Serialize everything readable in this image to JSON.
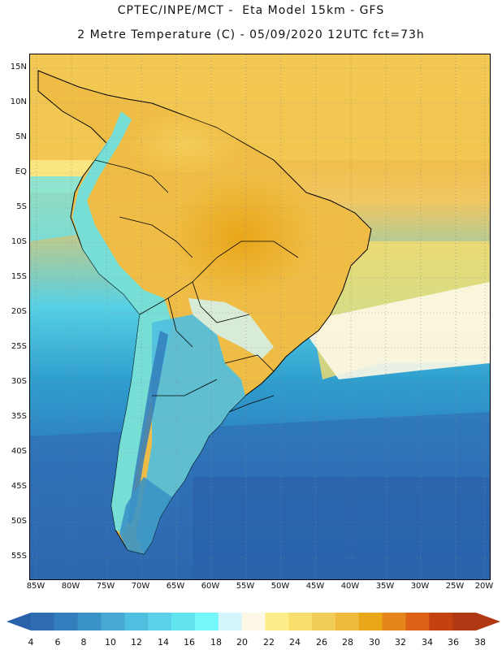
{
  "header": {
    "line1": "CPTEC/INPE/MCT -  Eta Model 15km - GFS",
    "line2": "2 Metre Temperature (C) - 05/09/2020 12UTC fct=73h"
  },
  "map": {
    "variable": "2 Metre Temperature",
    "units": "C",
    "lat_labels": [
      "15N",
      "10N",
      "5N",
      "EQ",
      "5S",
      "10S",
      "15S",
      "20S",
      "25S",
      "30S",
      "35S",
      "40S",
      "45S",
      "50S",
      "55S"
    ],
    "lon_labels": [
      "85W",
      "80W",
      "75W",
      "70W",
      "65W",
      "60W",
      "55W",
      "50W",
      "45W",
      "40W",
      "35W",
      "30W",
      "25W",
      "20W"
    ]
  },
  "colorbar": {
    "labels": [
      "4",
      "6",
      "8",
      "10",
      "12",
      "14",
      "16",
      "18",
      "20",
      "22",
      "24",
      "26",
      "28",
      "30",
      "32",
      "34",
      "36",
      "38"
    ],
    "colors": [
      "#2e6db3",
      "#327dbb",
      "#3a93c6",
      "#46a8d3",
      "#4fbfe0",
      "#5bd2ea",
      "#62e4f0",
      "#74f7f8",
      "#d2f6fb",
      "#fdf8e6",
      "#fdee8c",
      "#f8de6d",
      "#f3cd59",
      "#eeb93d",
      "#e9a619",
      "#e5861c",
      "#dd6215",
      "#c4420f",
      "#b03812"
    ],
    "under_color": "#2a61ab",
    "over_color": "#b03812"
  }
}
